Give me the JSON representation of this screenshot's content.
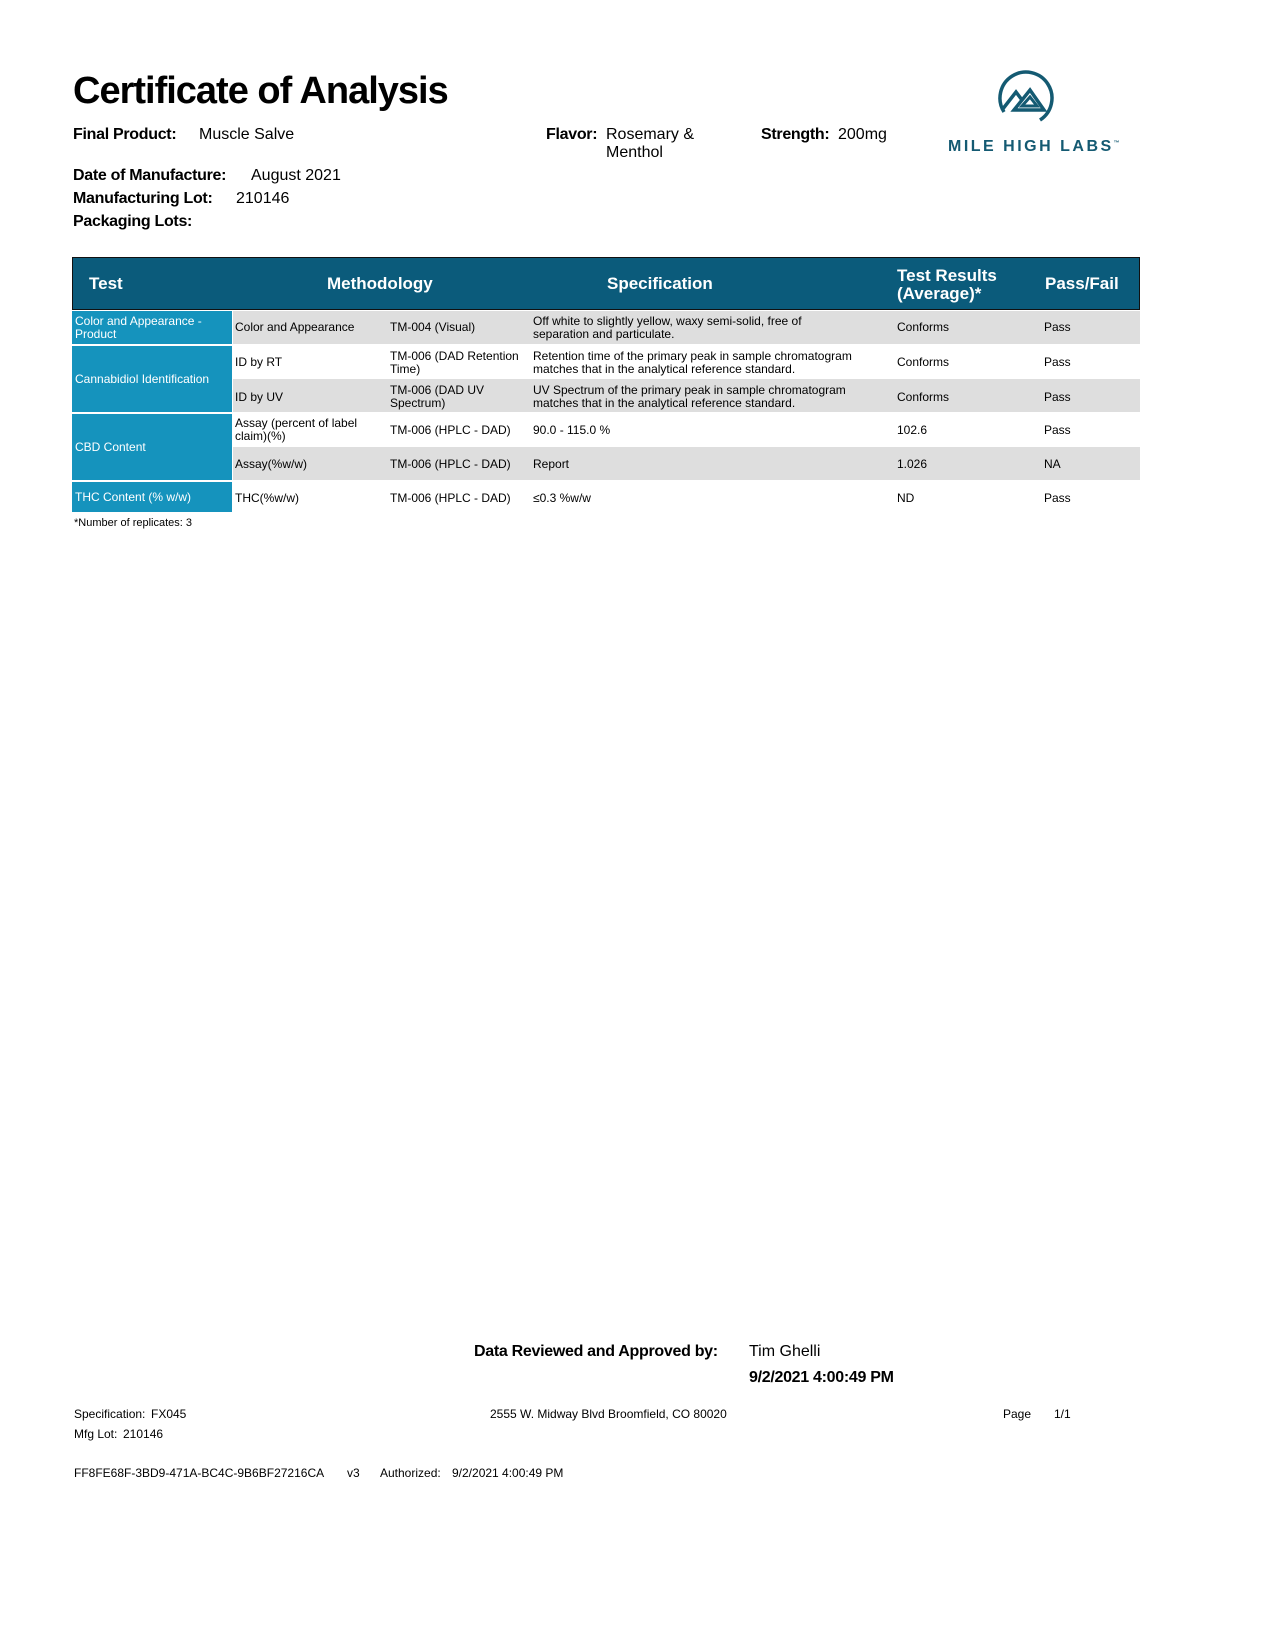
{
  "title": "Certificate of Analysis",
  "header": {
    "final_product_label": "Final Product:",
    "final_product": "Muscle Salve",
    "flavor_label": "Flavor:",
    "flavor_line1": "Rosemary &",
    "flavor_line2": "Menthol",
    "strength_label": "Strength:",
    "strength": "200mg",
    "date_label": "Date of Manufacture:",
    "date": "August 2021",
    "lot_label": "Manufacturing Lot:",
    "lot": "210146",
    "packaging_label": "Packaging Lots:"
  },
  "logo": {
    "text": "MILE HIGH LABS",
    "tm": "™",
    "color": "#145a72"
  },
  "table": {
    "headers": {
      "test": "Test",
      "methodology": "Methodology",
      "specification": "Specification",
      "results_line1": "Test Results",
      "results_line2": "(Average)*",
      "pass_fail": "Pass/Fail"
    },
    "groups": [
      "Color and Appearance - Product",
      "Cannabidiol Identification",
      "CBD Content",
      "THC Content (% w/w)"
    ],
    "rows": [
      {
        "name": "Color and Appearance",
        "method": "TM-004 (Visual)",
        "spec": "Off white to slightly yellow, waxy semi-solid, free of separation and particulate.",
        "result": "Conforms",
        "pass": "Pass"
      },
      {
        "name": "ID by RT",
        "method": "TM-006 (DAD Retention Time)",
        "spec": "Retention time of the primary peak in sample chromatogram matches that in the analytical reference standard.",
        "result": "Conforms",
        "pass": "Pass"
      },
      {
        "name": "ID by UV",
        "method": "TM-006 (DAD UV Spectrum)",
        "spec": "UV Spectrum of the primary peak in sample chromatogram matches that in the analytical reference standard.",
        "result": "Conforms",
        "pass": "Pass"
      },
      {
        "name": "Assay (percent of label claim)(%)",
        "method": "TM-006 (HPLC - DAD)",
        "spec": "90.0 - 115.0 %",
        "result": "102.6",
        "pass": "Pass"
      },
      {
        "name": "Assay(%w/w)",
        "method": "TM-006 (HPLC - DAD)",
        "spec": "Report",
        "result": "1.026",
        "pass": "NA"
      },
      {
        "name": "THC(%w/w)",
        "method": "TM-006 (HPLC - DAD)",
        "spec": "≤0.3 %w/w",
        "result": "ND",
        "pass": "Pass"
      }
    ],
    "footnote": "*Number of replicates: 3"
  },
  "approval": {
    "label": "Data Reviewed and Approved by:",
    "name": "Tim Ghelli",
    "datetime": "9/2/2021 4:00:49 PM"
  },
  "footer": {
    "spec_label": "Specification:",
    "spec": "FX045",
    "mfg_label": "Mfg Lot:",
    "mfg": "210146",
    "address": "2555 W. Midway Blvd Broomfield, CO 80020",
    "page_label": "Page",
    "page": "1/1",
    "doc_id": "FF8FE68F-3BD9-471A-BC4C-9B6BF27216CA",
    "version": "v3",
    "authorized_label": "Authorized:",
    "authorized": "9/2/2021 4:00:49 PM"
  }
}
